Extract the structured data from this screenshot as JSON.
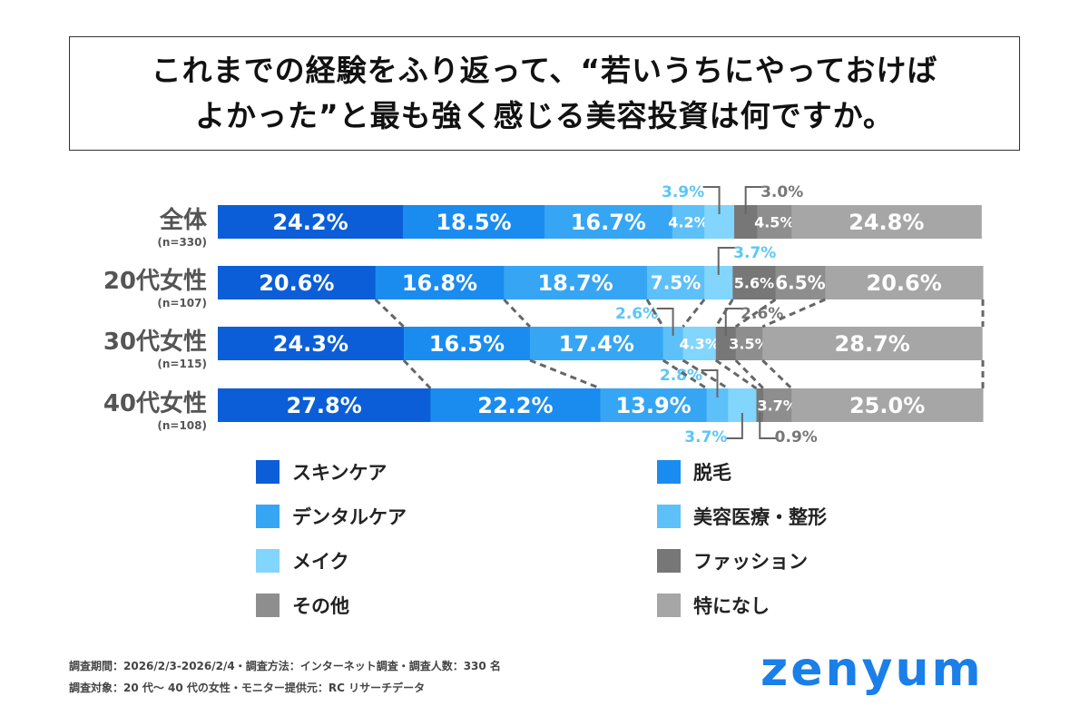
{
  "title": {
    "line1": "これまでの経験をふり返って、“若いうちにやっておけば",
    "line2": "よかった”と最も強く感じる美容投資は何ですか。"
  },
  "chart_data": {
    "type": "bar",
    "orientation": "horizontal-stacked-100",
    "categories": [
      {
        "label": "全体",
        "n": "(n=330)"
      },
      {
        "label": "20代女性",
        "n": "(n=107)"
      },
      {
        "label": "30代女性",
        "n": "(n=115)"
      },
      {
        "label": "40代女性",
        "n": "(n=108)"
      }
    ],
    "series": [
      {
        "name": "スキンケア",
        "color": "#0b5ed7",
        "values": [
          24.2,
          20.6,
          24.3,
          27.8
        ]
      },
      {
        "name": "脱毛",
        "color": "#1a8cf0",
        "values": [
          18.5,
          16.8,
          16.5,
          22.2
        ]
      },
      {
        "name": "デンタルケア",
        "color": "#36a5f3",
        "values": [
          16.7,
          18.7,
          17.4,
          13.9
        ]
      },
      {
        "name": "美容医療・整形",
        "color": "#5dc0f8",
        "values": [
          4.2,
          7.5,
          2.6,
          2.8
        ]
      },
      {
        "name": "メイク",
        "color": "#82d5fc",
        "values": [
          3.9,
          3.7,
          4.3,
          3.7
        ]
      },
      {
        "name": "ファッション",
        "color": "#777777",
        "values": [
          3.0,
          5.6,
          2.6,
          0.9
        ]
      },
      {
        "name": "その他",
        "color": "#8e8e8e",
        "values": [
          4.5,
          6.5,
          3.5,
          3.7
        ]
      },
      {
        "name": "特になし",
        "color": "#a6a6a6",
        "values": [
          24.8,
          20.6,
          28.7,
          25.0
        ]
      }
    ],
    "unit": "%",
    "legend_position": "bottom"
  },
  "footer": {
    "line1": "調査期間：2026/2/3-2026/2/4・調査方法：インターネット調査・調査人数：330 名",
    "line2": "調査対象：20 代〜 40 代の女性・モニター提供元：RC リサーチデータ"
  },
  "logo": "zenyum"
}
